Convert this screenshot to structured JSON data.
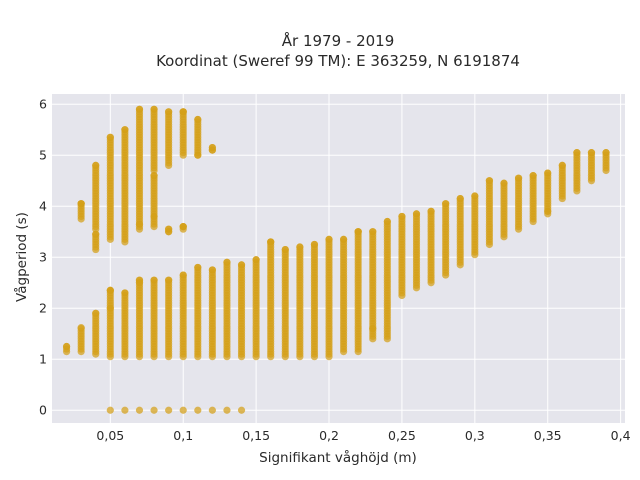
{
  "chart_data": {
    "type": "scatter",
    "title_lines": [
      "År 1979 - 2019",
      "Koordinat (Sweref 99 TM): E 363259, N 6191874"
    ],
    "xlabel": "Signifikant våghöjd (m)",
    "ylabel": "Vågperiod (s)",
    "xlim": [
      0.01,
      0.403
    ],
    "ylim": [
      -0.25,
      6.2
    ],
    "x_ticks": [
      {
        "value": 0.05,
        "label": "0,05"
      },
      {
        "value": 0.1,
        "label": "0,1"
      },
      {
        "value": 0.15,
        "label": "0,15"
      },
      {
        "value": 0.2,
        "label": "0,2"
      },
      {
        "value": 0.25,
        "label": "0,25"
      },
      {
        "value": 0.3,
        "label": "0,3"
      },
      {
        "value": 0.35,
        "label": "0,35"
      },
      {
        "value": 0.4,
        "label": "0,4"
      }
    ],
    "y_ticks": [
      {
        "value": 0,
        "label": "0"
      },
      {
        "value": 1,
        "label": "1"
      },
      {
        "value": 2,
        "label": "2"
      },
      {
        "value": 3,
        "label": "3"
      },
      {
        "value": 4,
        "label": "4"
      },
      {
        "value": 5,
        "label": "5"
      },
      {
        "value": 6,
        "label": "6"
      }
    ],
    "grid": true,
    "marker_color": "#d4a017",
    "plot_background": "#e5e5ec",
    "series": [
      {
        "columns": [
          {
            "x": 0.02,
            "ranges": [
              [
                1.15,
                1.25
              ]
            ]
          },
          {
            "x": 0.03,
            "ranges": [
              [
                1.15,
                1.62
              ],
              [
                3.75,
                4.05
              ]
            ]
          },
          {
            "x": 0.04,
            "ranges": [
              [
                1.1,
                1.9
              ],
              [
                3.2,
                3.45
              ],
              [
                3.55,
                4.8
              ]
            ]
          },
          {
            "x": 0.05,
            "ranges": [
              [
                1.05,
                2.35
              ],
              [
                3.35,
                5.35
              ]
            ]
          },
          {
            "x": 0.06,
            "ranges": [
              [
                1.05,
                2.3
              ],
              [
                3.35,
                5.5
              ]
            ]
          },
          {
            "x": 0.07,
            "ranges": [
              [
                1.05,
                2.55
              ],
              [
                3.55,
                5.9
              ]
            ]
          },
          {
            "x": 0.08,
            "ranges": [
              [
                1.05,
                2.55
              ],
              [
                3.6,
                4.6
              ],
              [
                4.7,
                5.9
              ]
            ]
          },
          {
            "x": 0.09,
            "ranges": [
              [
                1.05,
                2.55
              ],
              [
                3.5,
                3.55
              ],
              [
                4.8,
                5.85
              ]
            ]
          },
          {
            "x": 0.1,
            "ranges": [
              [
                1.05,
                2.65
              ],
              [
                3.55,
                3.6
              ],
              [
                5.0,
                5.85
              ]
            ]
          },
          {
            "x": 0.11,
            "ranges": [
              [
                1.05,
                2.8
              ],
              [
                5.0,
                5.7
              ]
            ]
          },
          {
            "x": 0.12,
            "ranges": [
              [
                1.05,
                2.75
              ],
              [
                5.1,
                5.15
              ]
            ]
          },
          {
            "x": 0.13,
            "ranges": [
              [
                1.05,
                2.9
              ]
            ]
          },
          {
            "x": 0.14,
            "ranges": [
              [
                1.05,
                2.85
              ]
            ]
          },
          {
            "x": 0.15,
            "ranges": [
              [
                1.05,
                2.95
              ]
            ]
          },
          {
            "x": 0.16,
            "ranges": [
              [
                1.05,
                3.3
              ]
            ]
          },
          {
            "x": 0.17,
            "ranges": [
              [
                1.05,
                3.15
              ]
            ]
          },
          {
            "x": 0.18,
            "ranges": [
              [
                1.05,
                3.2
              ]
            ]
          },
          {
            "x": 0.19,
            "ranges": [
              [
                1.05,
                3.25
              ]
            ]
          },
          {
            "x": 0.2,
            "ranges": [
              [
                1.05,
                3.35
              ]
            ]
          },
          {
            "x": 0.21,
            "ranges": [
              [
                1.15,
                3.35
              ]
            ]
          },
          {
            "x": 0.22,
            "ranges": [
              [
                1.15,
                3.5
              ]
            ]
          },
          {
            "x": 0.23,
            "ranges": [
              [
                1.4,
                3.5
              ]
            ]
          },
          {
            "x": 0.24,
            "ranges": [
              [
                1.4,
                3.7
              ]
            ]
          },
          {
            "x": 0.25,
            "ranges": [
              [
                2.25,
                3.8
              ]
            ]
          },
          {
            "x": 0.26,
            "ranges": [
              [
                2.4,
                3.85
              ]
            ]
          },
          {
            "x": 0.27,
            "ranges": [
              [
                2.5,
                3.9
              ]
            ]
          },
          {
            "x": 0.28,
            "ranges": [
              [
                2.65,
                4.05
              ]
            ]
          },
          {
            "x": 0.29,
            "ranges": [
              [
                2.85,
                4.15
              ]
            ]
          },
          {
            "x": 0.3,
            "ranges": [
              [
                3.05,
                4.2
              ]
            ]
          },
          {
            "x": 0.31,
            "ranges": [
              [
                3.25,
                4.5
              ]
            ]
          },
          {
            "x": 0.32,
            "ranges": [
              [
                3.4,
                4.45
              ]
            ]
          },
          {
            "x": 0.33,
            "ranges": [
              [
                3.55,
                4.55
              ]
            ]
          },
          {
            "x": 0.34,
            "ranges": [
              [
                3.7,
                4.6
              ]
            ]
          },
          {
            "x": 0.35,
            "ranges": [
              [
                3.85,
                4.65
              ]
            ]
          },
          {
            "x": 0.36,
            "ranges": [
              [
                4.15,
                4.8
              ]
            ]
          },
          {
            "x": 0.37,
            "ranges": [
              [
                4.3,
                5.05
              ]
            ]
          },
          {
            "x": 0.38,
            "ranges": [
              [
                4.5,
                5.05
              ]
            ]
          },
          {
            "x": 0.39,
            "ranges": [
              [
                4.7,
                5.05
              ]
            ]
          }
        ],
        "isolated_points": [
          [
            0.03,
            4.05
          ],
          [
            0.04,
            3.15
          ],
          [
            0.05,
            2.0
          ],
          [
            0.05,
            2.35
          ],
          [
            0.06,
            3.3
          ],
          [
            0.07,
            2.5
          ],
          [
            0.07,
            3.65
          ],
          [
            0.08,
            3.8
          ],
          [
            0.09,
            3.5
          ],
          [
            0.1,
            3.6
          ],
          [
            0.1,
            5.85
          ],
          [
            0.11,
            5.0
          ],
          [
            0.12,
            5.1
          ],
          [
            0.16,
            3.3
          ],
          [
            0.22,
            3.5
          ],
          [
            0.23,
            1.6
          ],
          [
            0.35,
            3.9
          ]
        ],
        "zero_points": [
          0.05,
          0.06,
          0.07,
          0.08,
          0.09,
          0.1,
          0.11,
          0.12,
          0.13,
          0.14
        ]
      }
    ]
  }
}
